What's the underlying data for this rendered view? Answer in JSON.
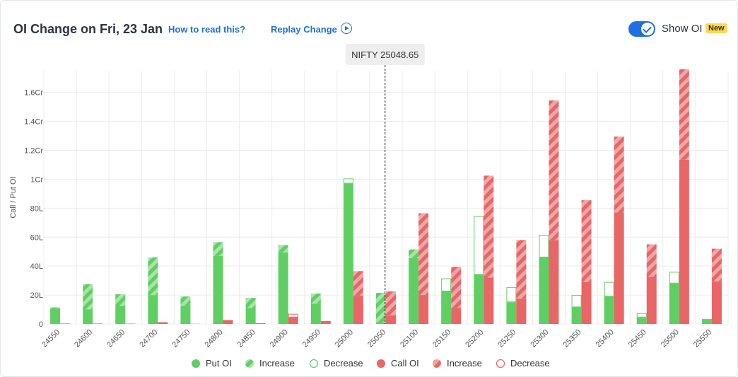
{
  "header": {
    "title": "OI Change on Fri, 23 Jan",
    "how_to_read": "How to read this?",
    "replay": "Replay Change",
    "show_oi": "Show OI",
    "new_badge": "New"
  },
  "colors": {
    "put": "#5fcf63",
    "put_light": "#a8e3a9",
    "call": "#e96566",
    "call_light": "#f2a8a8",
    "grid": "#ececec",
    "accent": "#1f6fe0"
  },
  "chart_data": {
    "type": "bar",
    "title": "",
    "ylabel": "Call / Put OI",
    "xlabel": "",
    "ylim": [
      0,
      17500000
    ],
    "yticks": [
      0,
      2000000,
      4000000,
      6000000,
      8000000,
      10000000,
      12000000,
      14000000,
      16000000
    ],
    "ytick_labels": [
      "0",
      "20L",
      "40L",
      "60L",
      "80L",
      "1Cr",
      "1.2Cr",
      "1.4Cr",
      "1.6Cr"
    ],
    "spot_label": "NIFTY 25048.65",
    "spot_value": 25048.65,
    "categories": [
      "24550",
      "24600",
      "24650",
      "24700",
      "24750",
      "24800",
      "24850",
      "24900",
      "24950",
      "25000",
      "25050",
      "25100",
      "25150",
      "25200",
      "25250",
      "25300",
      "25350",
      "25400",
      "25450",
      "25500",
      "25550"
    ],
    "series": [
      {
        "name": "Put OI",
        "values": [
          1150000,
          2750000,
          2050000,
          4600000,
          1900000,
          5650000,
          1800000,
          5450000,
          2100000,
          9700000,
          2150000,
          5150000,
          2250000,
          3400000,
          1500000,
          4600000,
          1150000,
          1900000,
          450000,
          2800000,
          250000
        ],
        "changes": [
          80000,
          1750000,
          800000,
          2600000,
          650000,
          950000,
          700000,
          500000,
          700000,
          -350000,
          2050000,
          600000,
          -900000,
          -4050000,
          -1050000,
          -1550000,
          -850000,
          -1000000,
          -300000,
          -800000,
          -100000
        ]
      },
      {
        "name": "Call OI",
        "values": [
          30000,
          30000,
          20000,
          120000,
          10000,
          270000,
          50000,
          450000,
          200000,
          3650000,
          2250000,
          7650000,
          3950000,
          10250000,
          5800000,
          15450000,
          8550000,
          12950000,
          5500000,
          17600000,
          5200000
        ],
        "changes": [
          0,
          0,
          0,
          0,
          0,
          0,
          0,
          -250000,
          0,
          1700000,
          1650000,
          5650000,
          2850000,
          7050000,
          4050000,
          9650000,
          5650000,
          5250000,
          2250000,
          6250000,
          2250000
        ]
      }
    ],
    "legend": [
      "Put OI",
      "Increase",
      "Decrease",
      "Call OI",
      "Increase",
      "Decrease"
    ],
    "legend_position": "bottom",
    "grid": true
  }
}
